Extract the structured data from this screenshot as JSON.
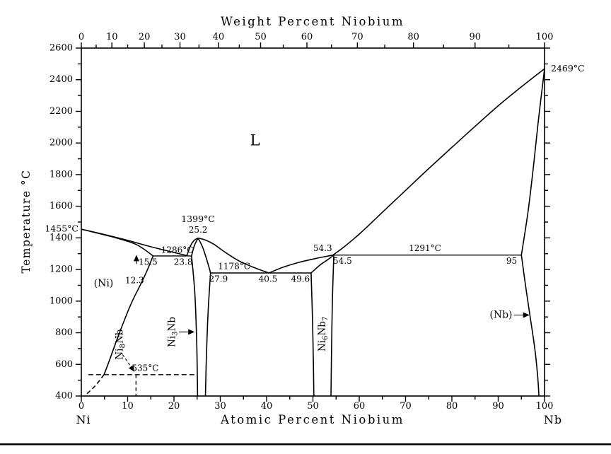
{
  "chart_data": {
    "type": "line",
    "top_axis_title": "Weight Percent Niobium",
    "bottom_axis_title": "Atomic Percent Niobium",
    "y_axis_title": "Temperature °C",
    "corner_left_label": "Ni",
    "corner_right_label": "Nb",
    "xlim": [
      0,
      100
    ],
    "ylim": [
      400,
      2600
    ],
    "colors": {
      "ink": "#000000",
      "background": "#ffffff"
    },
    "grid": false,
    "y_ticks": [
      400,
      600,
      800,
      1000,
      1200,
      1400,
      1600,
      1800,
      2000,
      2200,
      2400,
      2600
    ],
    "y_minor_step": 100,
    "x_ticks_bottom": [
      0,
      10,
      20,
      30,
      40,
      50,
      60,
      70,
      80,
      90,
      100
    ],
    "x_minor_step_bottom": 5,
    "top_ticks_weight_percent": [
      {
        "label": "0",
        "at_pct": 0
      },
      {
        "label": "10",
        "at_pct": 6.6
      },
      {
        "label": "20",
        "at_pct": 13.6
      },
      {
        "label": "30",
        "at_pct": 21.3
      },
      {
        "label": "40",
        "at_pct": 29.6
      },
      {
        "label": "50",
        "at_pct": 38.7
      },
      {
        "label": "60",
        "at_pct": 48.7
      },
      {
        "label": "70",
        "at_pct": 59.6
      },
      {
        "label": "80",
        "at_pct": 71.7
      },
      {
        "label": "90",
        "at_pct": 85.0
      },
      {
        "label": "100",
        "at_pct": 100
      }
    ],
    "top_minor_ticks_at_pct": [
      3.2,
      10.0,
      17.4,
      25.4,
      34.1,
      43.6,
      54.0,
      65.5,
      78.2,
      92.3
    ],
    "series": [
      {
        "name": "ni-liquidus",
        "points": [
          [
            0,
            1455
          ],
          [
            5,
            1421
          ],
          [
            10,
            1384
          ],
          [
            15,
            1344
          ],
          [
            19,
            1315
          ],
          [
            22.8,
            1288
          ]
        ]
      },
      {
        "name": "ni-solidus",
        "points": [
          [
            0,
            1455
          ],
          [
            4,
            1426
          ],
          [
            8,
            1396
          ],
          [
            12,
            1356
          ],
          [
            15.5,
            1286
          ]
        ]
      },
      {
        "name": "eutectic-line-1286",
        "points": [
          [
            15.5,
            1286
          ],
          [
            23.8,
            1286
          ]
        ],
        "width": 1.4
      },
      {
        "name": "ni-solvus",
        "points": [
          [
            15.5,
            1286
          ],
          [
            14,
            1180
          ],
          [
            12.7,
            1100
          ],
          [
            11,
            1000
          ],
          [
            9.3,
            880
          ],
          [
            7.6,
            750
          ],
          [
            6,
            620
          ],
          [
            4.9,
            535
          ]
        ]
      },
      {
        "name": "ni-solvus-metastable",
        "points": [
          [
            4.9,
            535
          ],
          [
            3,
            465
          ],
          [
            1,
            408
          ]
        ],
        "dash": "6 4"
      },
      {
        "name": "isotherm-535",
        "points": [
          [
            1.5,
            535
          ],
          [
            25,
            535
          ]
        ],
        "dash": "7 4",
        "width": 1.3
      },
      {
        "name": "ni8nb-boundary",
        "points": [
          [
            11.8,
            535
          ],
          [
            11.8,
            400
          ]
        ],
        "dash": "5 4",
        "width": 1.3
      },
      {
        "name": "ni8nb-pointer",
        "points": [
          [
            8.9,
            662
          ],
          [
            11.4,
            557
          ]
        ],
        "dash": "4 3",
        "width": 1.1,
        "arrow": true
      },
      {
        "name": "ni3nb-liquidus-left",
        "points": [
          [
            22.8,
            1288
          ],
          [
            23.6,
            1352
          ],
          [
            24.4,
            1385
          ],
          [
            25.2,
            1399
          ]
        ]
      },
      {
        "name": "ni3nb-liquidus-right",
        "points": [
          [
            25.2,
            1399
          ],
          [
            26.8,
            1386
          ],
          [
            28.6,
            1360
          ],
          [
            31,
            1310
          ],
          [
            34,
            1255
          ],
          [
            37.5,
            1210
          ],
          [
            40.5,
            1178
          ]
        ]
      },
      {
        "name": "ni3nb-solidus-left",
        "points": [
          [
            23.8,
            1286
          ],
          [
            24.4,
            1350
          ],
          [
            25.2,
            1399
          ]
        ]
      },
      {
        "name": "ni3nb-solidus-right",
        "points": [
          [
            25.2,
            1399
          ],
          [
            26.2,
            1340
          ],
          [
            27.2,
            1250
          ],
          [
            27.9,
            1178
          ]
        ]
      },
      {
        "name": "eutectic-line-1178",
        "points": [
          [
            27.9,
            1178
          ],
          [
            49.6,
            1178
          ]
        ],
        "width": 1.4
      },
      {
        "name": "ni3nb-left-boundary",
        "points": [
          [
            23.8,
            1286
          ],
          [
            24.5,
            1050
          ],
          [
            24.9,
            750
          ],
          [
            25.1,
            400
          ]
        ]
      },
      {
        "name": "ni3nb-right-boundary",
        "points": [
          [
            27.9,
            1178
          ],
          [
            27.4,
            950
          ],
          [
            27,
            650
          ],
          [
            26.8,
            400
          ]
        ]
      },
      {
        "name": "liquidus-valley",
        "points": [
          [
            40.5,
            1178
          ],
          [
            43.5,
            1214
          ],
          [
            47,
            1245
          ],
          [
            50.5,
            1269
          ],
          [
            54.3,
            1291
          ]
        ]
      },
      {
        "name": "peritectic-line-1291",
        "points": [
          [
            54.3,
            1291
          ],
          [
            95,
            1291
          ]
        ],
        "width": 1.4
      },
      {
        "name": "ni6nb7-solidus",
        "points": [
          [
            49.6,
            1178
          ],
          [
            51.6,
            1230
          ],
          [
            53.2,
            1262
          ],
          [
            54.5,
            1291
          ]
        ]
      },
      {
        "name": "ni6nb7-left-boundary",
        "points": [
          [
            49.6,
            1178
          ],
          [
            49.9,
            900
          ],
          [
            50.1,
            600
          ],
          [
            50.2,
            400
          ]
        ]
      },
      {
        "name": "ni6nb7-right-boundary",
        "points": [
          [
            54.5,
            1291
          ],
          [
            54.2,
            1000
          ],
          [
            54,
            650
          ],
          [
            53.9,
            400
          ]
        ]
      },
      {
        "name": "nb-liquidus",
        "points": [
          [
            54.3,
            1291
          ],
          [
            56.5,
            1338
          ],
          [
            59,
            1398
          ],
          [
            62,
            1478
          ],
          [
            66,
            1590
          ],
          [
            70,
            1700
          ],
          [
            75,
            1838
          ],
          [
            80,
            1972
          ],
          [
            85,
            2105
          ],
          [
            90,
            2235
          ],
          [
            95,
            2355
          ],
          [
            100,
            2469
          ]
        ]
      },
      {
        "name": "nb-solidus",
        "points": [
          [
            100,
            2469
          ],
          [
            98.7,
            2150
          ],
          [
            97.6,
            1850
          ],
          [
            96.6,
            1600
          ],
          [
            95.7,
            1420
          ],
          [
            95,
            1291
          ]
        ]
      },
      {
        "name": "nb-solvus",
        "points": [
          [
            95,
            1291
          ],
          [
            95.9,
            1100
          ],
          [
            96.9,
            900
          ],
          [
            97.9,
            700
          ],
          [
            98.5,
            530
          ],
          [
            98.8,
            400
          ]
        ]
      },
      {
        "name": "ni3nb-pointer",
        "points": [
          [
            21.1,
            805
          ],
          [
            24.3,
            805
          ]
        ],
        "width": 1.1,
        "arrow": true
      },
      {
        "name": "nb-pointer",
        "points": [
          [
            93.4,
            912
          ],
          [
            96.6,
            912
          ]
        ],
        "width": 1.1,
        "arrow": true
      },
      {
        "name": "comp-15-5-pointer",
        "points": [
          [
            11.9,
            1235
          ],
          [
            11.9,
            1288
          ]
        ],
        "width": 1.1,
        "arrow": true
      }
    ],
    "labels": [
      {
        "name": "liquid-region",
        "text": "L",
        "x": 37.5,
        "t": 2010,
        "size": 21
      },
      {
        "name": "temp-2469",
        "text": "2469°C",
        "x": 100,
        "t": 2469,
        "dx": 9,
        "align": "start",
        "size": 12.5
      },
      {
        "name": "temp-1455",
        "text": "1455°C",
        "x": 0,
        "t": 1455,
        "dx": -4,
        "align": "end",
        "size": 12.5
      },
      {
        "name": "temp-1399",
        "text": "1399°C",
        "x": 25.2,
        "t": 1399,
        "dy": -26,
        "size": 12.5
      },
      {
        "name": "comp-25-2",
        "text": "25.2",
        "x": 25.2,
        "t": 1399,
        "dy": -11,
        "size": 12
      },
      {
        "name": "temp-1286",
        "text": "1286°C",
        "x": 20.7,
        "t": 1286,
        "dy": -8,
        "size": 12
      },
      {
        "name": "comp-23-8",
        "text": "23.8",
        "x": 22.0,
        "t": 1286,
        "dy": 9,
        "size": 12
      },
      {
        "name": "comp-15-5",
        "text": "15.5",
        "x": 14.4,
        "t": 1286,
        "dy": 9,
        "size": 12
      },
      {
        "name": "comp-12-3",
        "text": "12.3",
        "x": 11.5,
        "t": 1129,
        "size": 12
      },
      {
        "name": "phase-ni",
        "text": "(Ni)",
        "x": 4.8,
        "t": 1110,
        "size": 14
      },
      {
        "name": "temp-1178",
        "text": "1178°C",
        "x": 33,
        "t": 1178,
        "dy": -9,
        "size": 12
      },
      {
        "name": "comp-27-9",
        "text": "27.9",
        "x": 29.6,
        "t": 1178,
        "dy": 9,
        "size": 12
      },
      {
        "name": "comp-40-5",
        "text": "40.5",
        "x": 40.3,
        "t": 1178,
        "dy": 9,
        "size": 12
      },
      {
        "name": "comp-49-6",
        "text": "49.6",
        "x": 47.3,
        "t": 1178,
        "dy": 9,
        "size": 12
      },
      {
        "name": "comp-54-3",
        "text": "54.3",
        "x": 52.1,
        "t": 1291,
        "dy": -9,
        "size": 12
      },
      {
        "name": "comp-54-5",
        "text": "54.5",
        "x": 56.4,
        "t": 1291,
        "dy": 9,
        "size": 12
      },
      {
        "name": "temp-1291",
        "text": "1291°C",
        "x": 74.2,
        "t": 1291,
        "dy": -9,
        "size": 12
      },
      {
        "name": "comp-95",
        "text": "95",
        "x": 92.9,
        "t": 1291,
        "dy": 9,
        "size": 12
      },
      {
        "name": "temp-535",
        "text": "535°C",
        "x": 13.8,
        "t": 535,
        "dy": -9,
        "size": 12
      },
      {
        "name": "phase-nb",
        "text": "(Nb)",
        "x": 90.6,
        "t": 912,
        "size": 14
      },
      {
        "name": "phase-ni8nb",
        "text": "Ni8Nb",
        "parts": [
          {
            "t": "Ni"
          },
          {
            "t": "8",
            "sub": true
          },
          {
            "t": "Nb"
          }
        ],
        "x": 8.3,
        "t": 726,
        "rotate": -90,
        "size": 13.5
      },
      {
        "name": "phase-ni3nb",
        "text": "Ni3Nb",
        "parts": [
          {
            "t": "Ni"
          },
          {
            "t": "3",
            "sub": true
          },
          {
            "t": "Nb"
          }
        ],
        "x": 19.6,
        "t": 805,
        "rotate": -90,
        "size": 13.5
      },
      {
        "name": "phase-ni6nb7",
        "text": "Ni6Nb7",
        "parts": [
          {
            "t": "Ni"
          },
          {
            "t": "6",
            "sub": true
          },
          {
            "t": "Nb"
          },
          {
            "t": "7",
            "sub": true
          }
        ],
        "x": 52.1,
        "t": 792,
        "rotate": -90,
        "size": 13.5
      }
    ]
  }
}
